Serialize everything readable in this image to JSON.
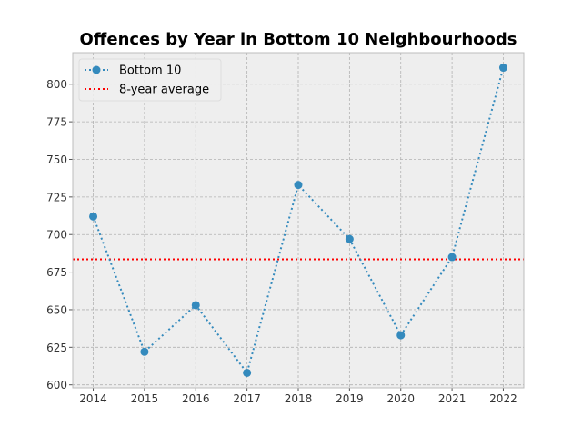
{
  "chart_data": {
    "type": "line",
    "title": "Offences by Year in Bottom 10 Neighbourhoods",
    "xlabel": "",
    "ylabel": "",
    "x": [
      2014,
      2015,
      2016,
      2017,
      2018,
      2019,
      2020,
      2021,
      2022
    ],
    "series": [
      {
        "name": "Bottom 10",
        "values": [
          712,
          622,
          653,
          608,
          733,
          697,
          633,
          685,
          811
        ],
        "color": "#348abd",
        "line_style": "dotted",
        "marker": "circle"
      }
    ],
    "reference_lines": [
      {
        "name": "8-year average",
        "value": 683.5,
        "color": "#ff0000",
        "line_style": "dotted",
        "orientation": "horizontal"
      }
    ],
    "xlim": [
      2013.6,
      2022.4
    ],
    "ylim": [
      598,
      821
    ],
    "x_ticks": [
      2014,
      2015,
      2016,
      2017,
      2018,
      2019,
      2020,
      2021,
      2022
    ],
    "y_ticks": [
      600,
      625,
      650,
      675,
      700,
      725,
      750,
      775,
      800
    ],
    "grid": true,
    "legend_position": "top-left",
    "background_color": "#eeeeee",
    "grid_color": "#b2b2b2"
  }
}
